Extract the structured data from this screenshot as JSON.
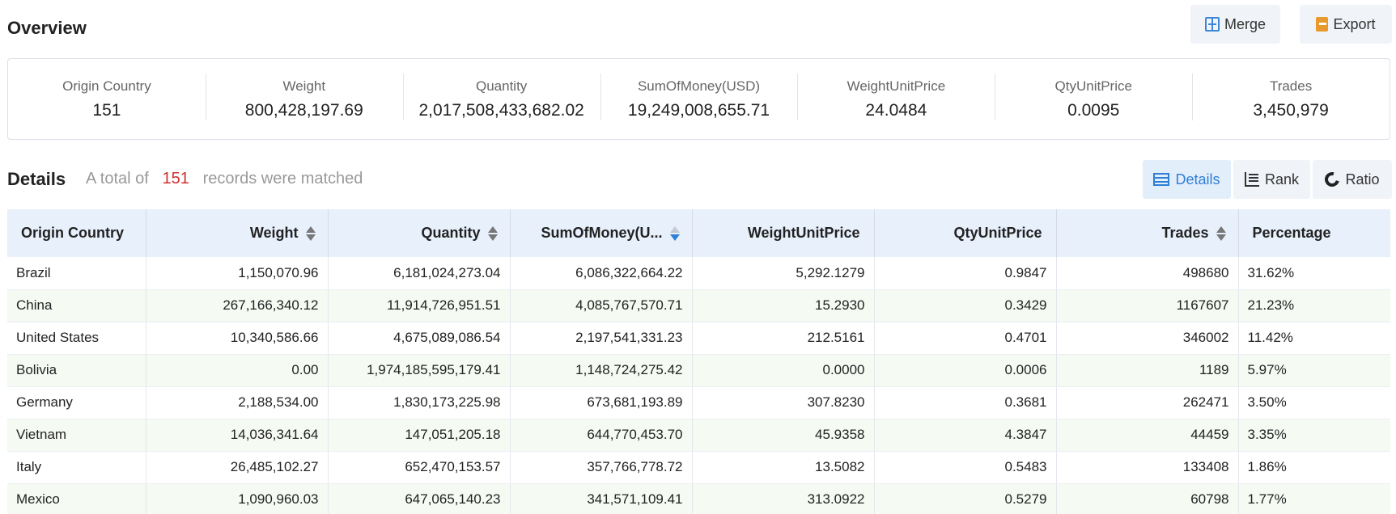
{
  "overview": {
    "title": "Overview",
    "merge_label": "Merge",
    "export_label": "Export"
  },
  "summary": [
    {
      "label": "Origin Country",
      "value": "151"
    },
    {
      "label": "Weight",
      "value": "800,428,197.69"
    },
    {
      "label": "Quantity",
      "value": "2,017,508,433,682.02"
    },
    {
      "label": "SumOfMoney(USD)",
      "value": "19,249,008,655.71"
    },
    {
      "label": "WeightUnitPrice",
      "value": "24.0484"
    },
    {
      "label": "QtyUnitPrice",
      "value": "0.0095"
    },
    {
      "label": "Trades",
      "value": "3,450,979"
    }
  ],
  "details": {
    "title": "Details",
    "note_prefix": "A total of",
    "count": "151",
    "note_suffix": "records were matched",
    "views": [
      {
        "label": "Details",
        "icon": "table-icon",
        "active": true
      },
      {
        "label": "Rank",
        "icon": "rank-icon",
        "active": false
      },
      {
        "label": "Ratio",
        "icon": "ratio-icon",
        "active": false
      }
    ]
  },
  "table": {
    "columns": [
      "Origin Country",
      "Weight",
      "Quantity",
      "SumOfMoney(U...",
      "WeightUnitPrice",
      "QtyUnitPrice",
      "Trades",
      "Percentage"
    ],
    "sorted_column": "SumOfMoney(U...",
    "rows": [
      [
        "Brazil",
        "1,150,070.96",
        "6,181,024,273.04",
        "6,086,322,664.22",
        "5,292.1279",
        "0.9847",
        "498680",
        "31.62%"
      ],
      [
        "China",
        "267,166,340.12",
        "11,914,726,951.51",
        "4,085,767,570.71",
        "15.2930",
        "0.3429",
        "1167607",
        "21.23%"
      ],
      [
        "United States",
        "10,340,586.66",
        "4,675,089,086.54",
        "2,197,541,331.23",
        "212.5161",
        "0.4701",
        "346002",
        "11.42%"
      ],
      [
        "Bolivia",
        "0.00",
        "1,974,185,595,179.41",
        "1,148,724,275.42",
        "0.0000",
        "0.0006",
        "1189",
        "5.97%"
      ],
      [
        "Germany",
        "2,188,534.00",
        "1,830,173,225.98",
        "673,681,193.89",
        "307.8230",
        "0.3681",
        "262471",
        "3.50%"
      ],
      [
        "Vietnam",
        "14,036,341.64",
        "147,051,205.18",
        "644,770,453.70",
        "45.9358",
        "4.3847",
        "44459",
        "3.35%"
      ],
      [
        "Italy",
        "26,485,102.27",
        "652,470,153.57",
        "357,766,778.72",
        "13.5082",
        "0.5483",
        "133408",
        "1.86%"
      ],
      [
        "Mexico",
        "1,090,960.03",
        "647,065,140.23",
        "341,571,109.41",
        "313.0922",
        "0.5279",
        "60798",
        "1.77%"
      ]
    ]
  }
}
